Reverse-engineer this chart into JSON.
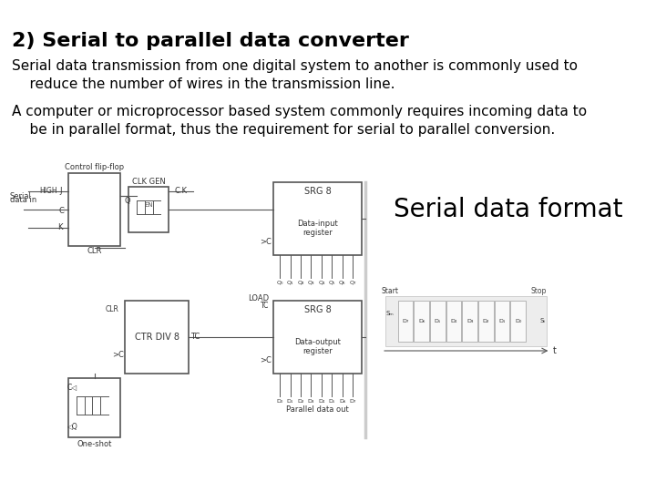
{
  "title": "2) Serial to parallel data converter",
  "title_fontsize": 16,
  "title_bold": true,
  "body_text_1": "Serial data transmission from one digital system to another is commonly used to\n    reduce the number of wires in the transmission line.",
  "body_text_2": "A computer or microprocessor based system commonly requires incoming data to\n    be in parallel format, thus the requirement for serial to parallel conversion.",
  "body_fontsize": 11,
  "label_serial_data_format": "Serial data format",
  "label_serial_data_format_fontsize": 20,
  "background_color": "#ffffff",
  "text_color": "#000000",
  "diagram_color": "#aaaaaa",
  "body_font": "sans-serif"
}
